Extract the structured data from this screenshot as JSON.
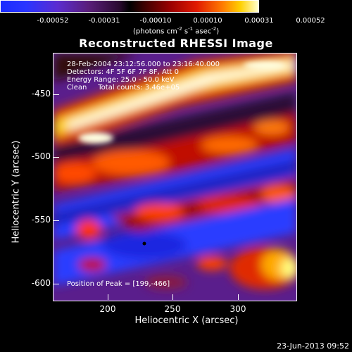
{
  "colorbar": {
    "ticks": [
      "-0.00052",
      "-0.00031",
      "-0.00010",
      "0.00010",
      "0.00031",
      "0.00052"
    ],
    "unit_main": "(photons cm",
    "unit_exp1": "-2",
    "unit_mid": " s",
    "unit_exp2": "-1",
    "unit_tail": " asec",
    "unit_exp3": "-2",
    "unit_end": ")"
  },
  "title": "Reconstructed RHESSI Image",
  "info": {
    "time_range": "28-Feb-2004 23:12:56.000 to 23:16:40.000",
    "detectors": "Detectors: 4F 5F 6F 7F 8F, Att 0",
    "energy": "Energy Range: 25.0 - 50.0 keV",
    "clean_counts": "Clean     Total counts: 3.46e+05",
    "peak": "Position of Peak = [199,-466]"
  },
  "axes": {
    "y_label": "Heliocentric Y (arcsec)",
    "x_label": "Heliocentric X (arcsec)",
    "y_ticks": [
      "-450",
      "-500",
      "-550",
      "-600"
    ],
    "x_ticks": [
      "200",
      "250",
      "300"
    ]
  },
  "footer": "23-Jun-2013 09:52"
}
